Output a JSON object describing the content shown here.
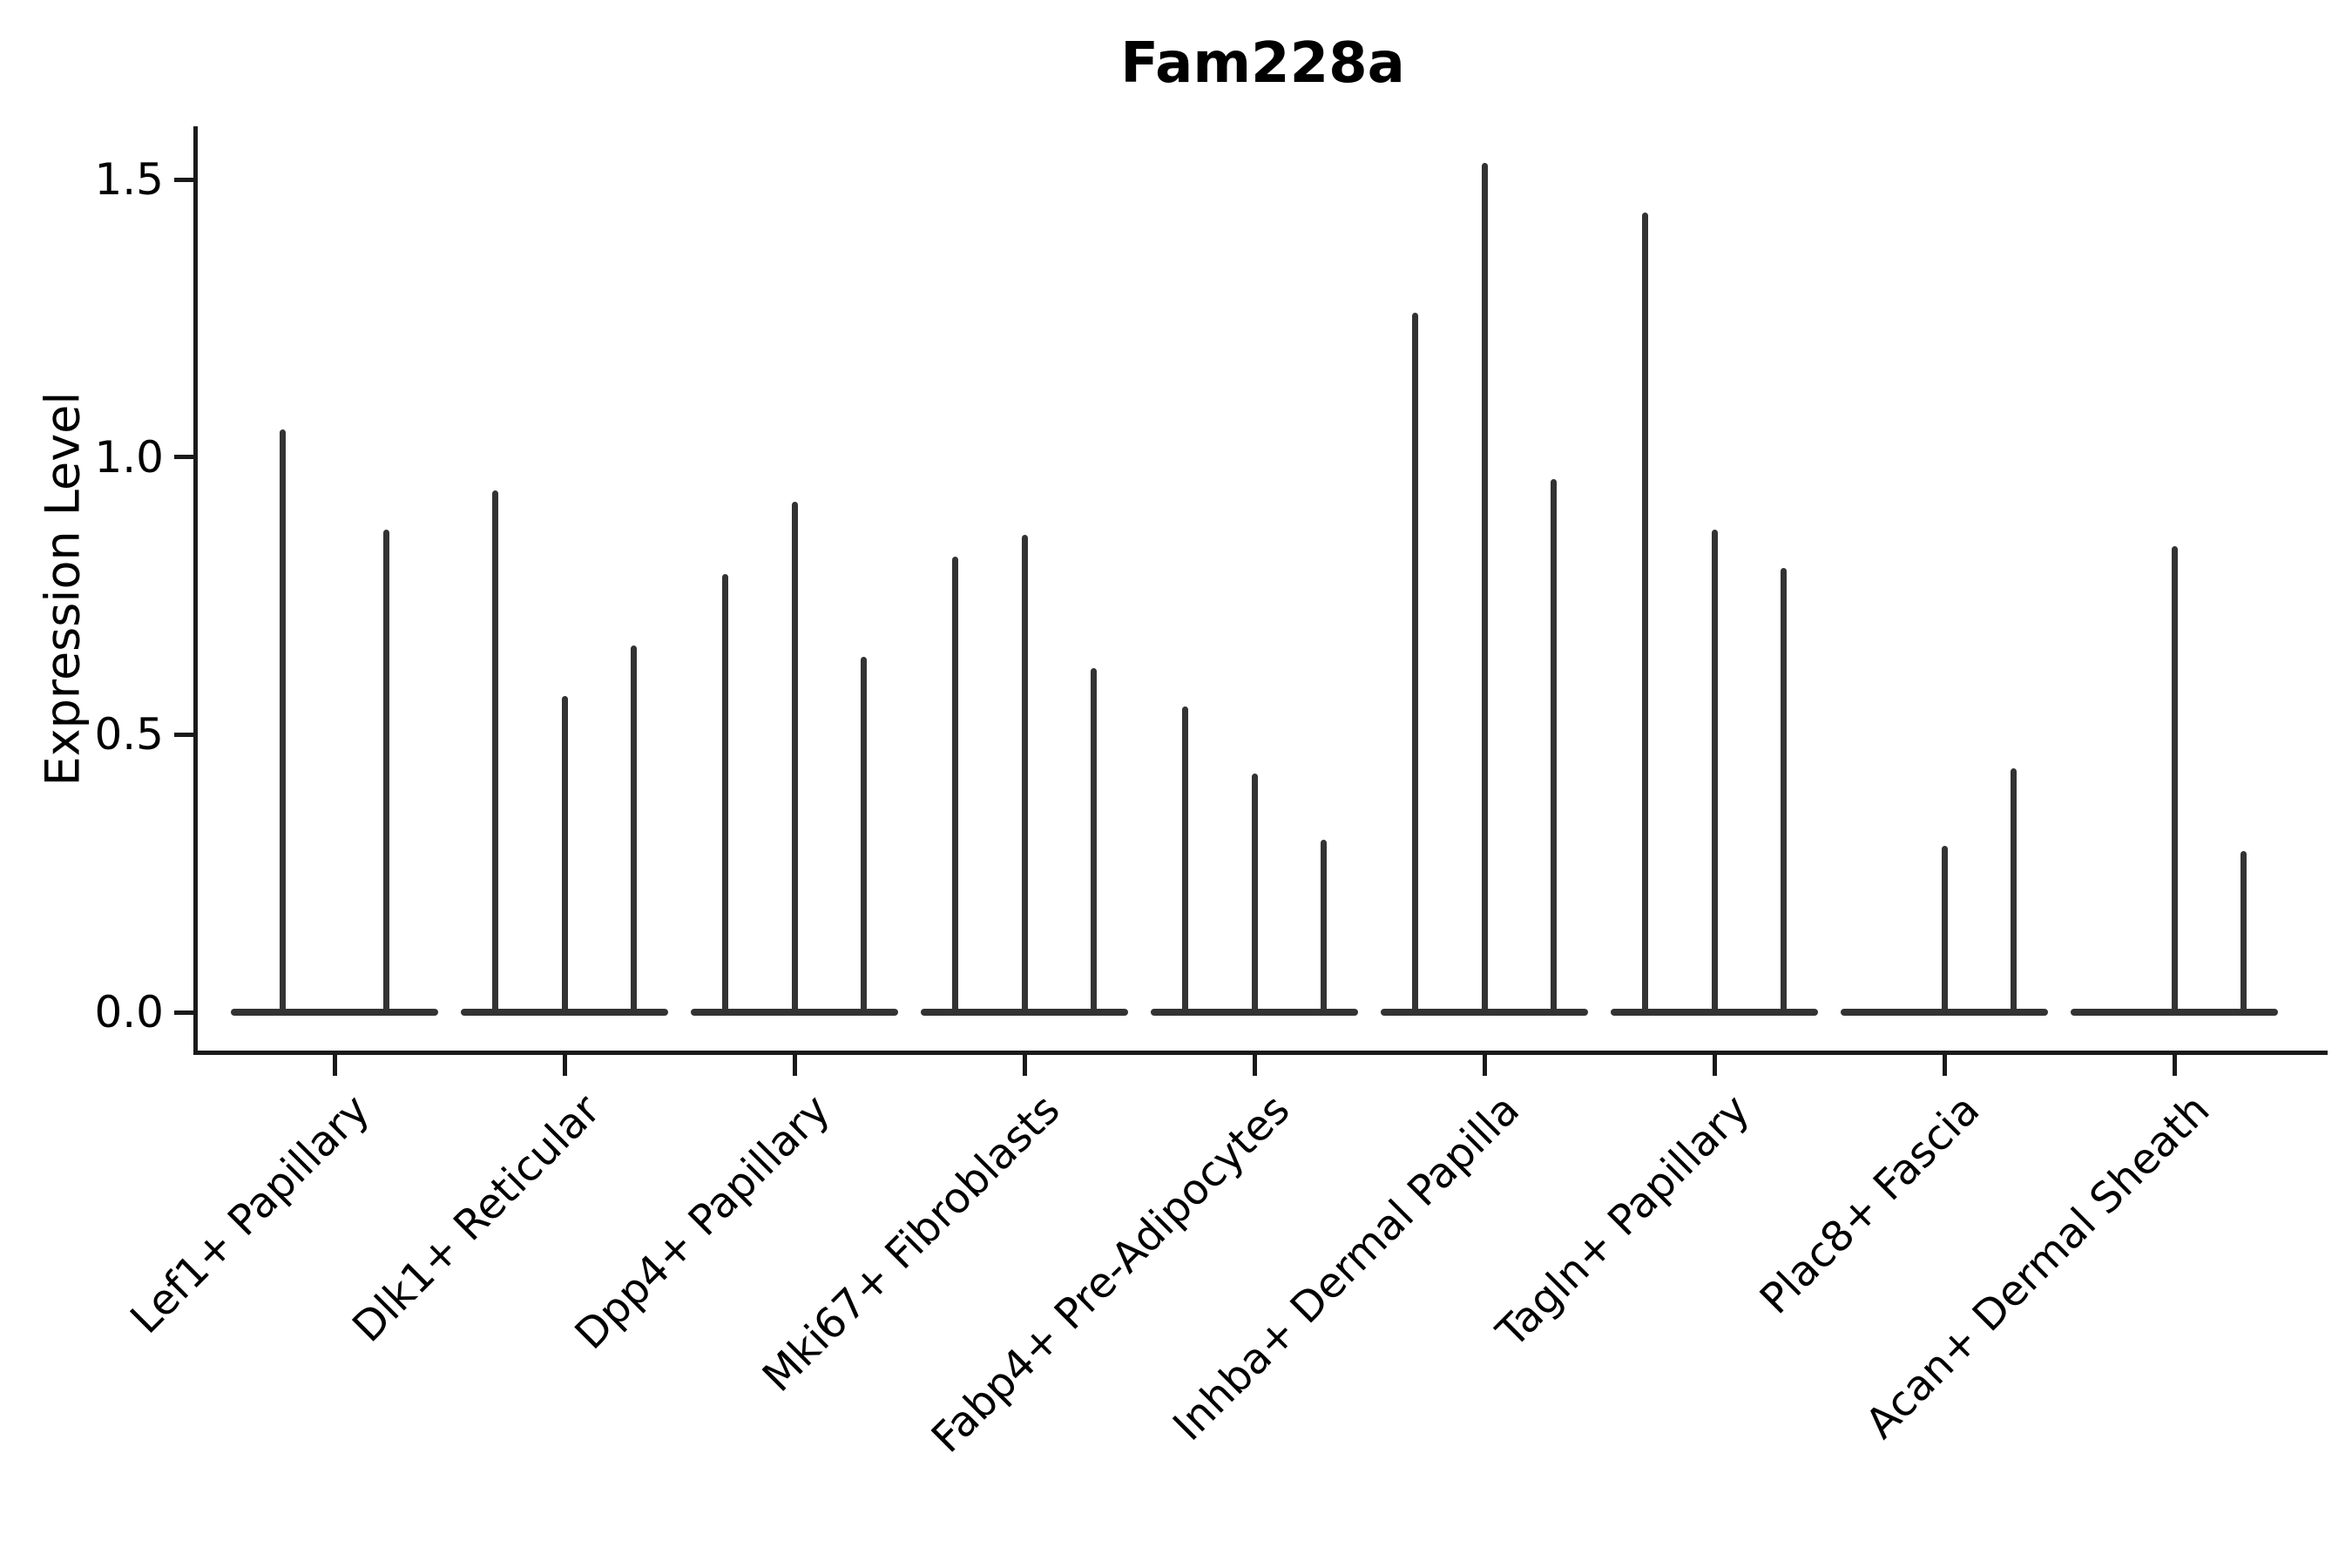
{
  "figure": {
    "title": "Fam228a",
    "background_color": "#ffffff",
    "text_color": "#000000",
    "violin_color": "#333333",
    "axis_color": "#1a1a1a"
  },
  "chart_data": {
    "type": "violin",
    "title": "Fam228a",
    "xlabel": "",
    "ylabel": "Expression Level",
    "ylim": [
      0,
      1.65
    ],
    "yticks": [
      0.0,
      0.5,
      1.0,
      1.5
    ],
    "ytick_labels": [
      "0.0",
      "0.5",
      "1.0",
      "1.5"
    ],
    "grid": false,
    "legend": null,
    "x_tick_rotation_deg": 45,
    "description": "Seurat-style violin plot; violins are collapsed to a flat base at 0 with thin density spikes (max expression) per split violin",
    "categories": [
      "Lef1+ Papillary",
      "Dlk1+ Reticular",
      "Dpp4+ Papillary",
      "Mki67+ Fibroblasts",
      "Fabp4+ Pre-Adipocytes",
      "Inhba+ Dermal Papilla",
      "Tagln+ Papillary",
      "Plac8+ Fascia",
      "Acan+ Dermal Sheath"
    ],
    "groups": [
      {
        "label": "Lef1+ Papillary",
        "violin_peaks": [
          1.05,
          0.87
        ]
      },
      {
        "label": "Dlk1+ Reticular",
        "violin_peaks": [
          0.94,
          0.57,
          0.66
        ]
      },
      {
        "label": "Dpp4+ Papillary",
        "violin_peaks": [
          0.79,
          0.92,
          0.64
        ]
      },
      {
        "label": "Mki67+ Fibroblasts",
        "violin_peaks": [
          0.82,
          0.86,
          0.62
        ]
      },
      {
        "label": "Fabp4+ Pre-Adipocytes",
        "violin_peaks": [
          0.55,
          0.43,
          0.31
        ]
      },
      {
        "label": "Inhba+ Dermal Papilla",
        "violin_peaks": [
          1.26,
          1.53,
          0.96
        ]
      },
      {
        "label": "Tagln+ Papillary",
        "violin_peaks": [
          1.44,
          0.87,
          0.8
        ]
      },
      {
        "label": "Plac8+ Fascia",
        "violin_peaks": [
          0,
          0.3,
          0.44
        ]
      },
      {
        "label": "Acan+ Dermal Sheath",
        "violin_peaks": [
          0,
          0.84,
          0.29
        ]
      }
    ]
  }
}
